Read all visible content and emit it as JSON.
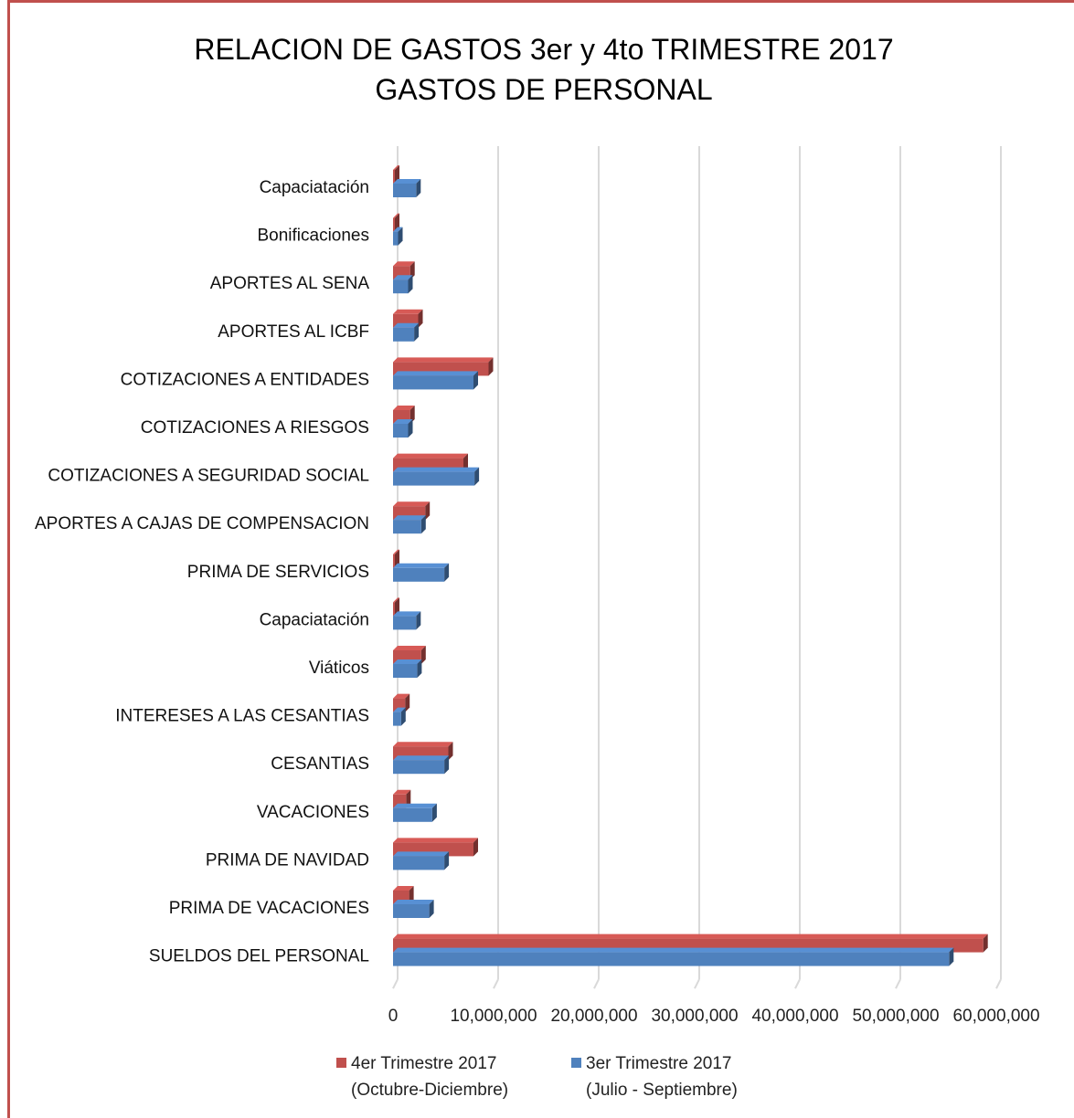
{
  "title": {
    "line1": "RELACION DE GASTOS 3er y 4to TRIMESTRE 2017",
    "line2": "GASTOS DE PERSONAL"
  },
  "colors": {
    "series_q4": "#c0504d",
    "series_q3": "#4f81bd",
    "grid": "#d9d9d9",
    "frame": "#c0504d"
  },
  "legend": {
    "q4_line1": "4er Trimestre 2017",
    "q4_line2": "(Octubre-Diciembre)",
    "q3_line1": "3er Trimestre 2017",
    "q3_line2": "(Julio - Septiembre)"
  },
  "chart_data": {
    "type": "bar",
    "orientation": "horizontal",
    "style": "3d-clustered",
    "categories": [
      "Capaciatación",
      "Bonificaciones",
      "APORTES AL SENA",
      "APORTES AL ICBF",
      "COTIZACIONES A ENTIDADES",
      "COTIZACIONES A RIESGOS",
      "COTIZACIONES A SEGURIDAD SOCIAL",
      "APORTES A CAJAS DE COMPENSACION",
      "PRIMA DE SERVICIOS",
      "Capaciatación",
      "Viáticos",
      "INTERESES A LAS CESANTIAS",
      "CESANTIAS",
      "VACACIONES",
      "PRIMA DE NAVIDAD",
      "PRIMA DE VACACIONES",
      "SUELDOS DEL PERSONAL"
    ],
    "series": [
      {
        "name": "4er Trimestre 2017 (Octubre-Diciembre)",
        "color": "#c0504d",
        "values": [
          100000,
          100000,
          1700000,
          2500000,
          9500000,
          1700000,
          7000000,
          3200000,
          100000,
          100000,
          2800000,
          1200000,
          5500000,
          1300000,
          8000000,
          1600000,
          58700000
        ]
      },
      {
        "name": "3er Trimestre 2017 (Julio - Septiembre)",
        "color": "#4f81bd",
        "values": [
          2300000,
          500000,
          1500000,
          2100000,
          8000000,
          1500000,
          8100000,
          2800000,
          5100000,
          2300000,
          2400000,
          800000,
          5100000,
          3900000,
          5100000,
          3600000,
          55300000
        ]
      }
    ],
    "xlim": [
      0,
      60000000
    ],
    "x_ticks": [
      "0",
      "10,000,000",
      "20,000,000",
      "30,000,000",
      "40,000,000",
      "50,000,000",
      "60,000,000"
    ],
    "grid": true,
    "legend_position": "bottom"
  }
}
